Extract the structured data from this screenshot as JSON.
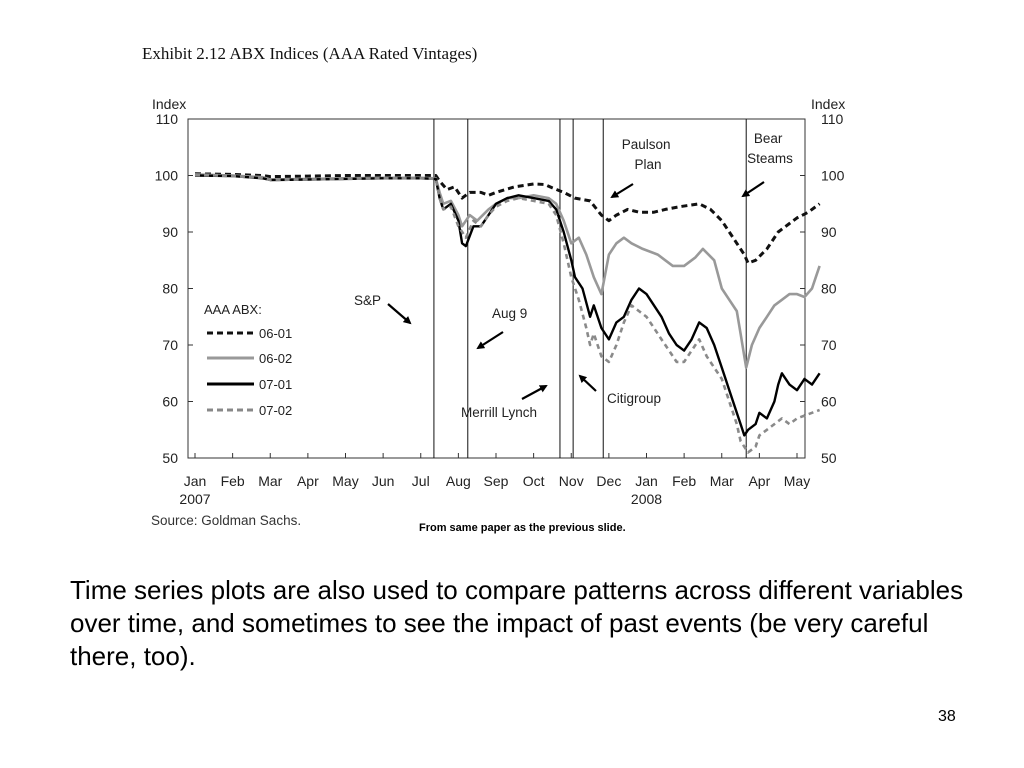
{
  "slide": {
    "caption": "From same paper as the previous slide.",
    "body_text": "Time series plots are also used to compare patterns across different variables over time, and sometimes to see the impact of past events (be very careful there, too).",
    "page_number": "38"
  },
  "chart_data": {
    "type": "line",
    "title": "Exhibit 2.12 ABX Indices (AAA Rated Vintages)",
    "ylabel_left": "Index",
    "ylabel_right": "Index",
    "ylim": [
      50,
      110
    ],
    "yticks": [
      110,
      100,
      90,
      80,
      70,
      60,
      50
    ],
    "x_month_ticks": [
      {
        "label": "Jan",
        "year": "2007",
        "pos": 0
      },
      {
        "label": "Feb",
        "year": "",
        "pos": 1
      },
      {
        "label": "Mar",
        "year": "",
        "pos": 2
      },
      {
        "label": "Apr",
        "year": "",
        "pos": 3
      },
      {
        "label": "May",
        "year": "",
        "pos": 4
      },
      {
        "label": "Jun",
        "year": "",
        "pos": 5
      },
      {
        "label": "Jul",
        "year": "",
        "pos": 6
      },
      {
        "label": "Aug",
        "year": "",
        "pos": 7
      },
      {
        "label": "Sep",
        "year": "",
        "pos": 8
      },
      {
        "label": "Oct",
        "year": "",
        "pos": 9
      },
      {
        "label": "Nov",
        "year": "",
        "pos": 10
      },
      {
        "label": "Dec",
        "year": "",
        "pos": 11
      },
      {
        "label": "Jan",
        "year": "2008",
        "pos": 12
      },
      {
        "label": "Feb",
        "year": "",
        "pos": 13
      },
      {
        "label": "Mar",
        "year": "",
        "pos": 14
      },
      {
        "label": "Apr",
        "year": "",
        "pos": 15
      },
      {
        "label": "May",
        "year": "",
        "pos": 16
      }
    ],
    "xlim": [
      0,
      16
    ],
    "grid": false,
    "legend": {
      "title": "AAA ABX:",
      "placement": "left-middle"
    },
    "source": "Source: Goldman Sachs.",
    "series": [
      {
        "name": "06-01",
        "color": "#111111",
        "style": "dashed-heavy",
        "points": [
          [
            0,
            100.3
          ],
          [
            1,
            100.2
          ],
          [
            1.8,
            100
          ],
          [
            2,
            99.8
          ],
          [
            3,
            99.9
          ],
          [
            4,
            100
          ],
          [
            5,
            100
          ],
          [
            6,
            100
          ],
          [
            6.4,
            100
          ],
          [
            6.5,
            99
          ],
          [
            6.7,
            97.5
          ],
          [
            6.9,
            98
          ],
          [
            7.1,
            96
          ],
          [
            7.3,
            97
          ],
          [
            7.6,
            97
          ],
          [
            7.8,
            96.5
          ],
          [
            8,
            97
          ],
          [
            8.5,
            98
          ],
          [
            9,
            98.5
          ],
          [
            9.3,
            98.4
          ],
          [
            9.5,
            97.8
          ],
          [
            9.8,
            97
          ],
          [
            10.1,
            96
          ],
          [
            10.5,
            95.5
          ],
          [
            10.8,
            93
          ],
          [
            11,
            92
          ],
          [
            11.2,
            93
          ],
          [
            11.5,
            94
          ],
          [
            11.8,
            93.5
          ],
          [
            12.2,
            93.5
          ],
          [
            12.5,
            94
          ],
          [
            12.9,
            94.5
          ],
          [
            13.4,
            95
          ],
          [
            13.7,
            94
          ],
          [
            14,
            92
          ],
          [
            14.2,
            90
          ],
          [
            14.4,
            88
          ],
          [
            14.6,
            86
          ],
          [
            14.7,
            84.5
          ],
          [
            14.9,
            85
          ],
          [
            15.2,
            87
          ],
          [
            15.5,
            90
          ],
          [
            15.8,
            91.5
          ],
          [
            16,
            92.5
          ],
          [
            16.3,
            93.5
          ],
          [
            16.5,
            94.5
          ],
          [
            16.6,
            95
          ]
        ]
      },
      {
        "name": "06-02",
        "color": "#999999",
        "style": "solid-gray",
        "points": [
          [
            0,
            100.2
          ],
          [
            1,
            100
          ],
          [
            1.8,
            99.7
          ],
          [
            2,
            99.3
          ],
          [
            3,
            99.4
          ],
          [
            4,
            99.5
          ],
          [
            5,
            99.6
          ],
          [
            6,
            99.6
          ],
          [
            6.4,
            99.5
          ],
          [
            6.5,
            97
          ],
          [
            6.6,
            95
          ],
          [
            6.8,
            95.5
          ],
          [
            7,
            93
          ],
          [
            7.1,
            91
          ],
          [
            7.3,
            93
          ],
          [
            7.5,
            92
          ],
          [
            7.8,
            94
          ],
          [
            8,
            95
          ],
          [
            8.3,
            96
          ],
          [
            8.6,
            96
          ],
          [
            9,
            96.5
          ],
          [
            9.4,
            96
          ],
          [
            9.6,
            95
          ],
          [
            9.8,
            92
          ],
          [
            10,
            88
          ],
          [
            10.2,
            89
          ],
          [
            10.4,
            86
          ],
          [
            10.6,
            82
          ],
          [
            10.8,
            79
          ],
          [
            11,
            86
          ],
          [
            11.2,
            88
          ],
          [
            11.4,
            89
          ],
          [
            11.6,
            88
          ],
          [
            11.9,
            87
          ],
          [
            12.3,
            86
          ],
          [
            12.5,
            85
          ],
          [
            12.7,
            84
          ],
          [
            13,
            84
          ],
          [
            13.3,
            85.5
          ],
          [
            13.5,
            87
          ],
          [
            13.8,
            85
          ],
          [
            14,
            80
          ],
          [
            14.2,
            78
          ],
          [
            14.4,
            76
          ],
          [
            14.5,
            72
          ],
          [
            14.6,
            68
          ],
          [
            14.65,
            66
          ],
          [
            14.8,
            70
          ],
          [
            15,
            73
          ],
          [
            15.2,
            75
          ],
          [
            15.4,
            77
          ],
          [
            15.6,
            78
          ],
          [
            15.8,
            79
          ],
          [
            16,
            79
          ],
          [
            16.2,
            78.5
          ],
          [
            16.4,
            80
          ],
          [
            16.5,
            82
          ],
          [
            16.6,
            84
          ]
        ]
      },
      {
        "name": "07-01",
        "color": "#000000",
        "style": "solid-black",
        "points": [
          [
            0,
            100
          ],
          [
            1,
            99.9
          ],
          [
            1.8,
            99.5
          ],
          [
            2,
            99.2
          ],
          [
            3,
            99.3
          ],
          [
            4,
            99.4
          ],
          [
            5,
            99.5
          ],
          [
            6,
            99.5
          ],
          [
            6.4,
            99.4
          ],
          [
            6.5,
            96
          ],
          [
            6.6,
            94
          ],
          [
            6.8,
            95
          ],
          [
            7,
            92
          ],
          [
            7.1,
            88
          ],
          [
            7.2,
            87.5
          ],
          [
            7.4,
            91
          ],
          [
            7.6,
            91
          ],
          [
            7.8,
            93
          ],
          [
            8,
            95
          ],
          [
            8.3,
            96
          ],
          [
            8.6,
            96.5
          ],
          [
            9,
            96
          ],
          [
            9.4,
            95.5
          ],
          [
            9.6,
            94
          ],
          [
            9.8,
            90
          ],
          [
            10,
            85
          ],
          [
            10.1,
            82
          ],
          [
            10.3,
            80
          ],
          [
            10.5,
            75
          ],
          [
            10.6,
            77
          ],
          [
            10.8,
            73
          ],
          [
            11,
            71
          ],
          [
            11.2,
            74
          ],
          [
            11.4,
            75
          ],
          [
            11.6,
            78
          ],
          [
            11.8,
            80
          ],
          [
            12,
            79
          ],
          [
            12.2,
            77
          ],
          [
            12.4,
            75
          ],
          [
            12.6,
            72
          ],
          [
            12.8,
            70
          ],
          [
            13,
            69
          ],
          [
            13.2,
            71
          ],
          [
            13.4,
            74
          ],
          [
            13.6,
            73
          ],
          [
            13.8,
            70
          ],
          [
            14,
            66
          ],
          [
            14.2,
            62
          ],
          [
            14.4,
            58
          ],
          [
            14.5,
            56
          ],
          [
            14.6,
            54
          ],
          [
            14.7,
            55
          ],
          [
            14.9,
            56
          ],
          [
            15,
            58
          ],
          [
            15.2,
            57
          ],
          [
            15.4,
            60
          ],
          [
            15.5,
            63
          ],
          [
            15.6,
            65
          ],
          [
            15.8,
            63
          ],
          [
            16,
            62
          ],
          [
            16.2,
            64
          ],
          [
            16.4,
            63
          ],
          [
            16.6,
            65
          ]
        ]
      },
      {
        "name": "07-02",
        "color": "#888888",
        "style": "dashed-gray",
        "points": [
          [
            0,
            100.1
          ],
          [
            1,
            99.9
          ],
          [
            1.8,
            99.6
          ],
          [
            2,
            99.2
          ],
          [
            3,
            99.3
          ],
          [
            4,
            99.4
          ],
          [
            5,
            99.5
          ],
          [
            6,
            99.5
          ],
          [
            6.4,
            99.4
          ],
          [
            6.5,
            96
          ],
          [
            6.6,
            94
          ],
          [
            6.8,
            94.5
          ],
          [
            7,
            91
          ],
          [
            7.2,
            89
          ],
          [
            7.4,
            92
          ],
          [
            7.6,
            91
          ],
          [
            7.8,
            93
          ],
          [
            8,
            94.5
          ],
          [
            8.3,
            95.5
          ],
          [
            8.6,
            96
          ],
          [
            9,
            95.5
          ],
          [
            9.4,
            95
          ],
          [
            9.6,
            93
          ],
          [
            9.8,
            88
          ],
          [
            10,
            82
          ],
          [
            10.2,
            78
          ],
          [
            10.4,
            73
          ],
          [
            10.5,
            70
          ],
          [
            10.6,
            72
          ],
          [
            10.8,
            68
          ],
          [
            11,
            67
          ],
          [
            11.2,
            70
          ],
          [
            11.4,
            74
          ],
          [
            11.6,
            77
          ],
          [
            11.8,
            76
          ],
          [
            12,
            75
          ],
          [
            12.2,
            73
          ],
          [
            12.4,
            71
          ],
          [
            12.6,
            69
          ],
          [
            12.8,
            67
          ],
          [
            13,
            67
          ],
          [
            13.2,
            69
          ],
          [
            13.4,
            71
          ],
          [
            13.6,
            68
          ],
          [
            13.8,
            66
          ],
          [
            14,
            64
          ],
          [
            14.2,
            60
          ],
          [
            14.4,
            56
          ],
          [
            14.5,
            53
          ],
          [
            14.6,
            52
          ],
          [
            14.7,
            51
          ],
          [
            14.9,
            52
          ],
          [
            15,
            54
          ],
          [
            15.2,
            55
          ],
          [
            15.4,
            56
          ],
          [
            15.6,
            57
          ],
          [
            15.8,
            56
          ],
          [
            16,
            57
          ],
          [
            16.2,
            57.5
          ],
          [
            16.4,
            58
          ],
          [
            16.6,
            58.5
          ]
        ]
      }
    ],
    "event_lines": [
      {
        "label": "S&P",
        "x": 6.35
      },
      {
        "label": "Aug 9",
        "x": 7.25
      },
      {
        "label": "Merrill Lynch",
        "x": 9.7
      },
      {
        "label": "Citigroup",
        "x": 10.05
      },
      {
        "label": "Paulson Plan",
        "x": 10.85
      },
      {
        "label": "Bear Steams",
        "x": 14.65
      }
    ]
  }
}
